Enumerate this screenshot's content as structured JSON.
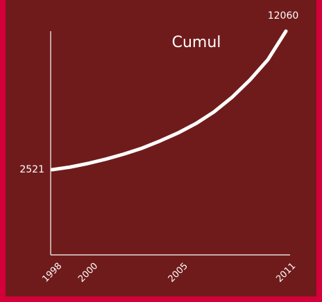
{
  "chart_data": {
    "type": "line",
    "title": "Cumul",
    "x": [
      1998,
      1999,
      2000,
      2001,
      2002,
      2003,
      2004,
      2005,
      2006,
      2007,
      2008,
      2009,
      2010,
      2011
    ],
    "values": [
      2521,
      2700,
      2950,
      3250,
      3600,
      4000,
      4500,
      5050,
      5700,
      6500,
      7500,
      8700,
      10100,
      12060
    ],
    "color": "#ffffff",
    "xlim": [
      1998,
      2011
    ],
    "xticks": [
      1998,
      2000,
      2005,
      2011
    ]
  }
}
